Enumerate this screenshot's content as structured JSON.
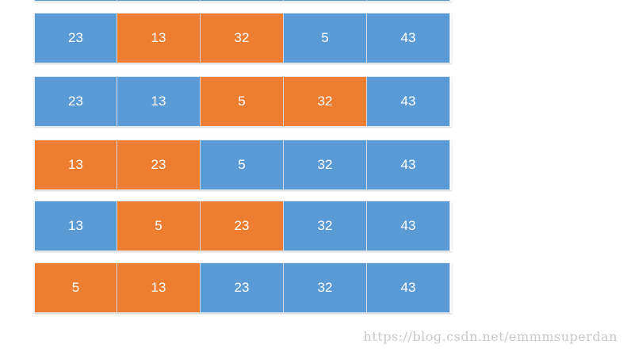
{
  "colors": {
    "blue": "#5b9bd5",
    "orange": "#ed7d31"
  },
  "rows": [
    {
      "cells": [
        {
          "value": "23",
          "color": "blue"
        },
        {
          "value": "13",
          "color": "orange"
        },
        {
          "value": "32",
          "color": "orange"
        },
        {
          "value": "5",
          "color": "blue"
        },
        {
          "value": "43",
          "color": "blue"
        }
      ]
    },
    {
      "cells": [
        {
          "value": "23",
          "color": "blue"
        },
        {
          "value": "13",
          "color": "blue"
        },
        {
          "value": "5",
          "color": "orange"
        },
        {
          "value": "32",
          "color": "orange"
        },
        {
          "value": "43",
          "color": "blue"
        }
      ]
    },
    {
      "cells": [
        {
          "value": "13",
          "color": "orange"
        },
        {
          "value": "23",
          "color": "orange"
        },
        {
          "value": "5",
          "color": "blue"
        },
        {
          "value": "32",
          "color": "blue"
        },
        {
          "value": "43",
          "color": "blue"
        }
      ]
    },
    {
      "cells": [
        {
          "value": "13",
          "color": "blue"
        },
        {
          "value": "5",
          "color": "orange"
        },
        {
          "value": "23",
          "color": "orange"
        },
        {
          "value": "32",
          "color": "blue"
        },
        {
          "value": "43",
          "color": "blue"
        }
      ]
    },
    {
      "cells": [
        {
          "value": "5",
          "color": "orange"
        },
        {
          "value": "13",
          "color": "orange"
        },
        {
          "value": "23",
          "color": "blue"
        },
        {
          "value": "32",
          "color": "blue"
        },
        {
          "value": "43",
          "color": "blue"
        }
      ]
    }
  ],
  "watermark": "https://blog.csdn.net/emmmsuperdan"
}
